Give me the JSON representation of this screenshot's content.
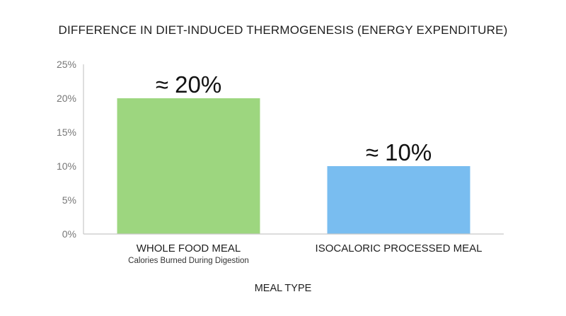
{
  "chart_data": {
    "type": "bar",
    "title": "DIFFERENCE IN DIET-INDUCED THERMOGENESIS (ENERGY EXPENDITURE)",
    "xlabel": "MEAL TYPE",
    "ylabel": "",
    "categories": [
      "WHOLE FOOD MEAL",
      "ISOCALORIC PROCESSED MEAL"
    ],
    "category_sublabels": [
      "Calories Burned During Digestion",
      ""
    ],
    "values": [
      20,
      10
    ],
    "data_labels": [
      "≈ 20%",
      "≈ 10%"
    ],
    "colors": [
      "#9dd67f",
      "#79bdf0"
    ],
    "ylim": [
      0,
      25
    ],
    "yticks": [
      0,
      5,
      10,
      15,
      20,
      25
    ],
    "ytick_labels": [
      "0%",
      "5%",
      "10%",
      "15%",
      "20%",
      "25%"
    ],
    "grid": false
  }
}
